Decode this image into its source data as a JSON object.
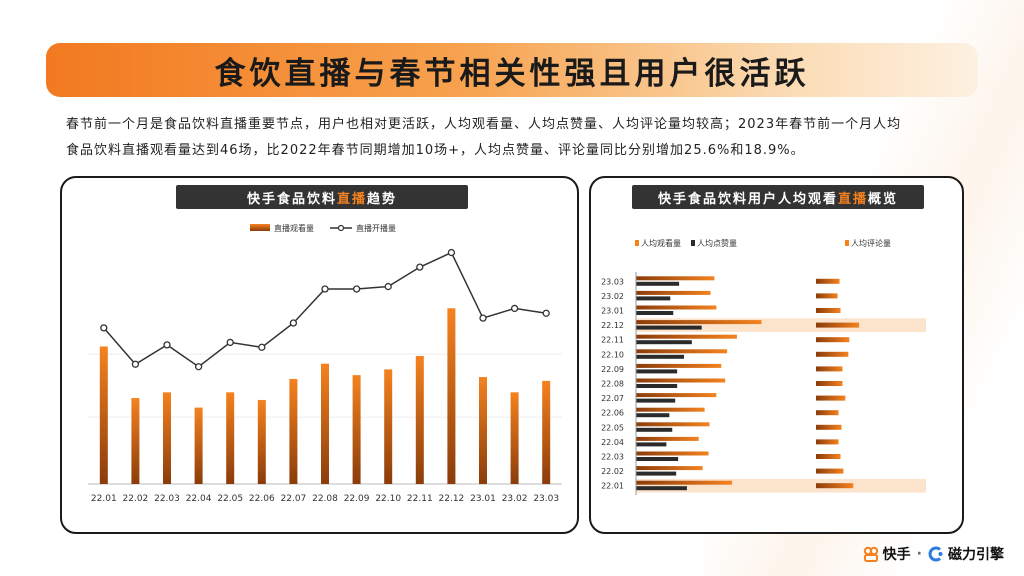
{
  "title": "食饮直播与春节相关性强且用户很活跃",
  "intro": {
    "line1": "春节前一个月是食品饮料直播重要节点，用户也相对更活跃，人均观看量、人均点赞量、人均评论量均较高；2023年春节前一个月人均",
    "line2": "食品饮料直播观看量达到46场，比2022年春节同期增加10场+，人均点赞量、评论量同比分别增加25.6%和18.9%。"
  },
  "left_panel": {
    "title_pre": "快手食品饮料",
    "title_hl": "直播",
    "title_post": "趋势"
  },
  "right_panel": {
    "title_pre": "快手食品饮料用户人均观看",
    "title_hl": "直播",
    "title_post": "概览"
  },
  "brand": {
    "kuaishou": "快手",
    "separator": "·",
    "cili": "磁力引擎"
  },
  "colors": {
    "accent": "#f5821f",
    "dark_bar": "#2b2b2b",
    "highlight_row": "#fbe3cc",
    "title_bg": "#333333"
  },
  "chart_data": [
    {
      "type": "bar",
      "categories": [
        "22.01",
        "22.02",
        "22.03",
        "22.04",
        "22.05",
        "22.06",
        "22.07",
        "22.08",
        "22.09",
        "22.10",
        "22.11",
        "22.12",
        "23.01",
        "23.02",
        "23.03"
      ],
      "series": [
        {
          "name": "直播观看量",
          "type": "bar",
          "values": [
            72,
            45,
            48,
            40,
            48,
            44,
            55,
            63,
            57,
            60,
            67,
            92,
            56,
            48,
            54
          ]
        },
        {
          "name": "直播开播量",
          "type": "line",
          "values": [
            73,
            58,
            66,
            57,
            67,
            65,
            75,
            89,
            89,
            90,
            98,
            104,
            77,
            81,
            79
          ]
        }
      ],
      "legend": "top-center",
      "grid": true
    },
    {
      "type": "bar",
      "orientation": "horizontal",
      "categories": [
        "23.03",
        "23.02",
        "23.01",
        "22.12",
        "22.11",
        "22.10",
        "22.09",
        "22.08",
        "22.07",
        "22.06",
        "22.05",
        "22.04",
        "22.03",
        "22.02",
        "22.01"
      ],
      "series": [
        {
          "name": "人均观看量",
          "values": [
            80,
            76,
            82,
            128,
            103,
            93,
            87,
            91,
            82,
            70,
            75,
            64,
            74,
            68,
            98
          ]
        },
        {
          "name": "人均点赞量",
          "values": [
            44,
            35,
            38,
            67,
            57,
            49,
            42,
            42,
            40,
            34,
            37,
            31,
            43,
            41,
            52
          ]
        },
        {
          "name": "人均评论量",
          "values": [
            24,
            22,
            25,
            44,
            34,
            33,
            27,
            27,
            30,
            23,
            26,
            23,
            25,
            28,
            38
          ]
        }
      ],
      "highlighted": [
        "22.12",
        "22.01"
      ],
      "legend": "top"
    }
  ]
}
